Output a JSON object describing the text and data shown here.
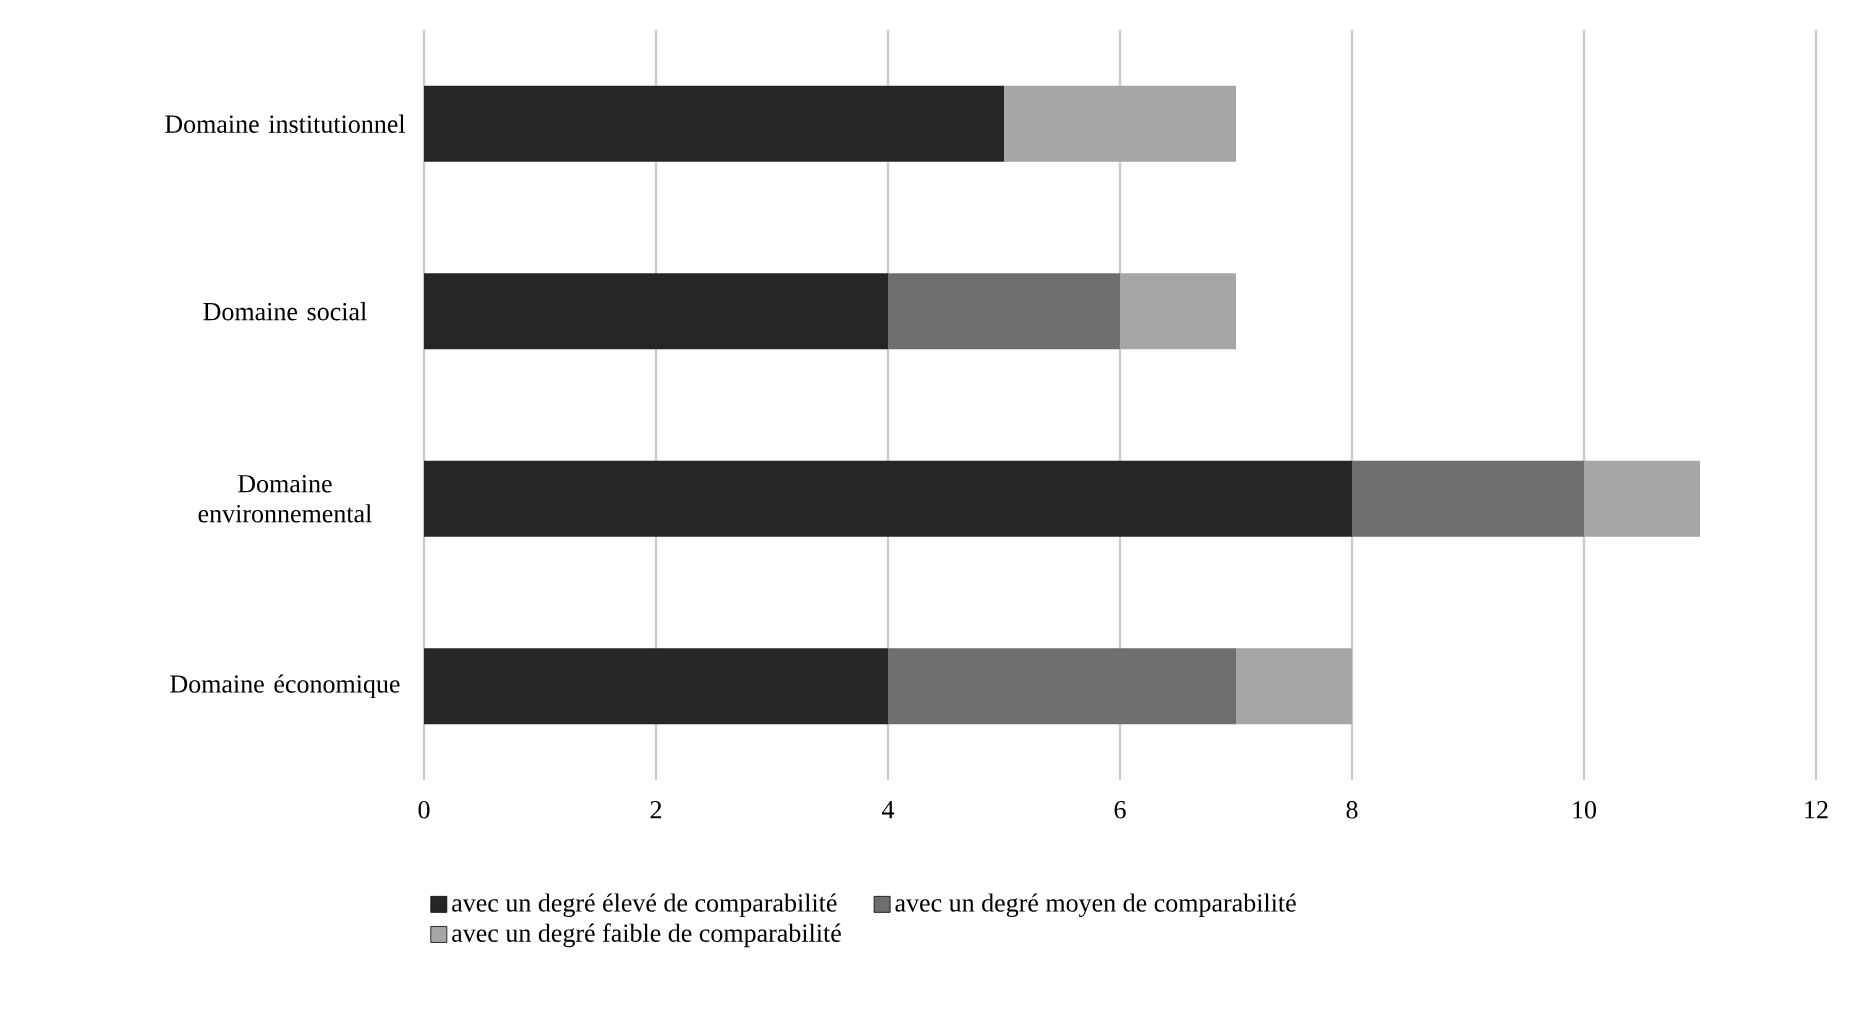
{
  "chart_data": {
    "type": "bar",
    "orientation": "horizontal",
    "stacked": true,
    "categories": [
      "Domaine institutionnel",
      "Domaine social",
      "Domaine environnemental",
      "Domaine économique"
    ],
    "series": [
      {
        "name": "avec un degré élevé de comparabilité",
        "color": "#262626",
        "values": [
          5,
          4,
          8,
          4
        ]
      },
      {
        "name": "avec un degré moyen de comparabilité",
        "color": "#6e6e6e",
        "values": [
          0,
          2,
          2,
          3
        ]
      },
      {
        "name": "avec un degré faible de comparabilité",
        "color": "#a6a6a6",
        "values": [
          2,
          1,
          1,
          1
        ]
      }
    ],
    "xlim": [
      0,
      12
    ],
    "xticks": [
      0,
      2,
      4,
      6,
      8,
      10,
      12
    ],
    "grid": "x",
    "legend": "bottom"
  }
}
